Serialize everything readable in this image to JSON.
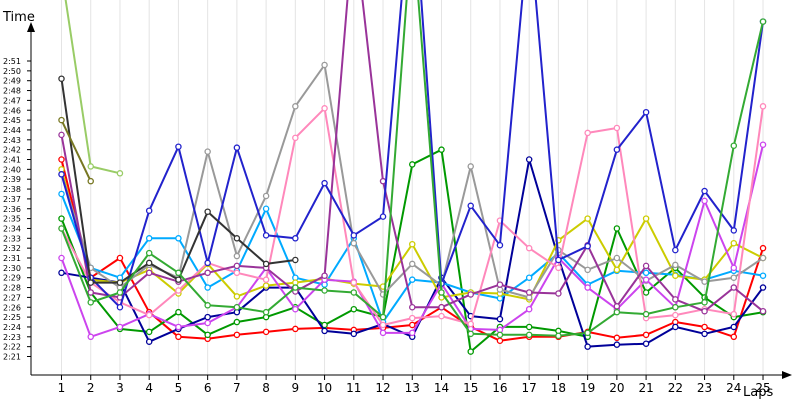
{
  "chart_data": {
    "type": "line",
    "title": "",
    "ylabel": "Time",
    "xlabel": "Laps",
    "x_ticks": [
      1,
      2,
      3,
      4,
      5,
      6,
      7,
      8,
      9,
      10,
      11,
      12,
      13,
      14,
      15,
      16,
      17,
      18,
      19,
      20,
      21,
      22,
      23,
      24,
      25
    ],
    "y_ticks": [
      "2:21",
      "2:22",
      "2:23",
      "2:24",
      "2:25",
      "2:26",
      "2:27",
      "2:28",
      "2:29",
      "2:30",
      "2:31",
      "2:32",
      "2:33",
      "2:34",
      "2:35",
      "2:36",
      "2:37",
      "2:38",
      "2:39",
      "2:40",
      "2:41",
      "2:42",
      "2:43",
      "2:44",
      "2:45",
      "2:46",
      "2:47",
      "2:48",
      "2:49",
      "2:50",
      "2:51"
    ],
    "ylim_seconds": [
      141,
      171
    ],
    "y_unit": "seconds (m:ss)",
    "grid": "vertical lines at each lap",
    "series": [
      {
        "color": "#ff0000",
        "values": [
          161,
          149,
          151,
          145.5,
          143,
          142.8,
          143.2,
          143.5,
          143.8,
          143.9,
          143.7,
          143.9,
          144.2,
          146,
          144,
          142.6,
          143,
          143,
          143.5,
          142.9,
          143.2,
          144.5,
          144,
          143,
          152
        ]
      },
      {
        "color": "#009900",
        "values": [
          155,
          147.5,
          143.8,
          143.5,
          145.5,
          143.2,
          144.5,
          145,
          146,
          144.2,
          145.8,
          145,
          160.5,
          162,
          141.5,
          144,
          144,
          143.6,
          143,
          154,
          147.5,
          150,
          147,
          145,
          145.5
        ]
      },
      {
        "color": "#000099",
        "values": [
          149.5,
          149,
          148.5,
          142.5,
          143.8,
          145,
          145.5,
          148,
          148,
          143.6,
          143.3,
          144.3,
          143,
          149,
          145.1,
          144.8,
          161,
          151,
          142,
          142.2,
          142.3,
          144,
          143.3,
          144,
          148
        ]
      },
      {
        "color": "#00aaff",
        "values": [
          157.5,
          150,
          149,
          153,
          153,
          148,
          149.7,
          156,
          149,
          148.3,
          153,
          144.5,
          148.8,
          148.5,
          147.5,
          146.9,
          149,
          151.5,
          148.3,
          149.7,
          149.5,
          149.3,
          148.8,
          149.7,
          149.2
        ]
      },
      {
        "color": "#cccc00",
        "values": [
          160,
          148.8,
          148.5,
          149.8,
          147.4,
          150.4,
          147.1,
          148.2,
          148.5,
          148.9,
          148.4,
          148.1,
          152.4,
          147,
          147.5,
          147.4,
          146.8,
          152.8,
          155,
          149.8,
          155,
          149.2,
          148.8,
          152.5,
          151
        ]
      },
      {
        "color": "#999999",
        "values": [
          159.5,
          150,
          148,
          150.3,
          149,
          161.8,
          151.2,
          157.3,
          166.4,
          170.6,
          152.5,
          147.3,
          150.4,
          148.2,
          160.3,
          147.8,
          147,
          151.8,
          149.8,
          151,
          148.7,
          150.3,
          148.6,
          149,
          151
        ]
      },
      {
        "color": "#cc44ee",
        "values": [
          151,
          143,
          144,
          145.3,
          144,
          144.4,
          146,
          150,
          145.8,
          148.8,
          148.6,
          143.4,
          143.4,
          148.4,
          143.8,
          143.7,
          145.8,
          151,
          148,
          145.8,
          148.8,
          146,
          156.8,
          150,
          162.5
        ]
      },
      {
        "color": "#ff88bb",
        "values": [
          154,
          148.5,
          146.5,
          145.2,
          147.7,
          150.5,
          149.5,
          148.8,
          163.2,
          166.2,
          148.5,
          144.2,
          144.9,
          145.1,
          144.3,
          154.8,
          152,
          150,
          163.7,
          164.2,
          144.9,
          145.2,
          145.8,
          145.3,
          166.4
        ]
      },
      {
        "color": "#993399",
        "values": [
          163.5,
          147.5,
          147,
          149.5,
          148.6,
          149.5,
          150.2,
          150,
          147.6,
          149.2,
          185,
          158.8,
          146,
          146,
          147.3,
          148.3,
          147.5,
          147.4,
          152.3,
          146.1,
          150.2,
          146.8,
          145.6,
          148,
          145.6
        ]
      },
      {
        "color": "#2222cc",
        "values": [
          159.5,
          149,
          146,
          155.8,
          162.3,
          150.5,
          162.2,
          153.3,
          153,
          158.6,
          153.3,
          155.2,
          190,
          148.4,
          156.3,
          152.3,
          185,
          150.8,
          152.2,
          162,
          165.8,
          151.8,
          157.8,
          153.8,
          175
        ]
      },
      {
        "color": "#333333",
        "values": [
          169.2,
          148.5,
          148.5,
          150.5,
          148.8,
          155.7,
          153,
          150.4,
          150.8
        ]
      },
      {
        "color": "#33aa33",
        "values": [
          154,
          146.5,
          147.5,
          151.5,
          149.5,
          146.2,
          146,
          145.5,
          148,
          147.7,
          147.5,
          145,
          185,
          147.5,
          143.3,
          143.2,
          143.2,
          143.1,
          143.4,
          145.5,
          145.3,
          146,
          146.5,
          162.4,
          175
        ]
      },
      {
        "color": "#99cc66",
        "values": [
          180,
          160.3,
          159.6
        ]
      },
      {
        "color": "#777722",
        "values": [
          165,
          158.8
        ]
      }
    ]
  }
}
